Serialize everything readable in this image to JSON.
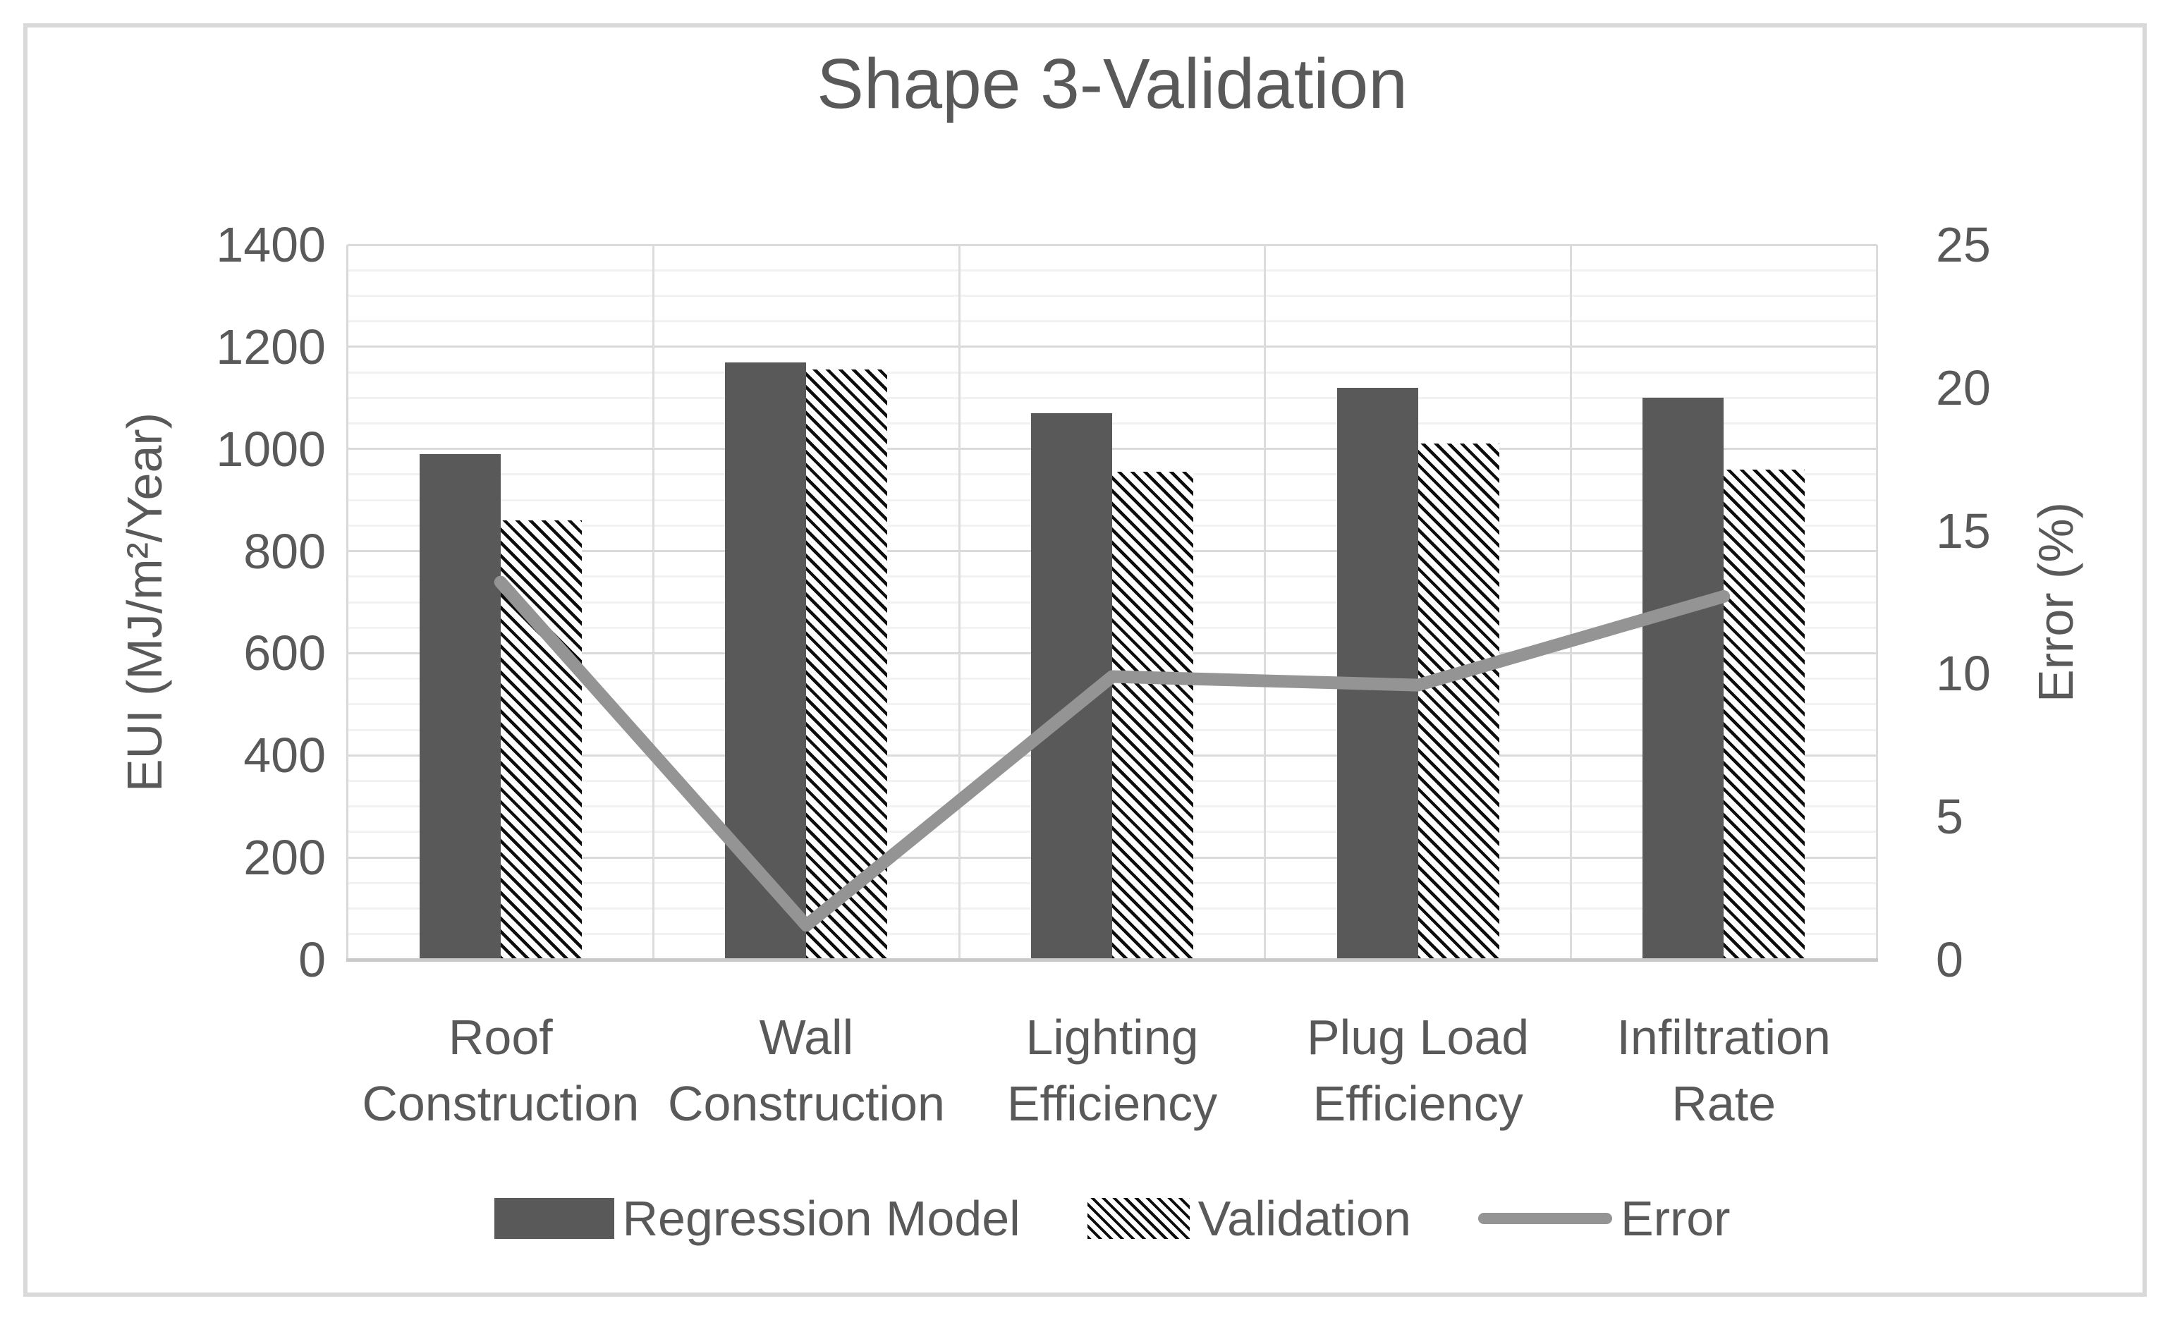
{
  "title": "Shape 3-Validation",
  "colors": {
    "text": "#595959",
    "bar_solid": "#595959",
    "hatch_stroke": "#0c0c0c",
    "error_line": "#949494",
    "grid_major": "#DADADA",
    "grid_minor": "#F2F2F2",
    "grid_vertical": "#DCDCDC",
    "axis_line": "#C9C9C9",
    "frame_border": "#D9D9D9"
  },
  "chart_data": {
    "type": "combo-bar-line",
    "title": "Shape 3-Validation",
    "categories": [
      "Roof Construction",
      "Wall Construction",
      "Lighting Efficiency",
      "Plug Load Efficiency",
      "Infiltration Rate"
    ],
    "category_label_lines": [
      [
        "Roof",
        "Construction"
      ],
      [
        "Wall",
        "Construction"
      ],
      [
        "Lighting",
        "Efficiency"
      ],
      [
        "Plug Load",
        "Efficiency"
      ],
      [
        "Infiltration",
        "Rate"
      ]
    ],
    "series": [
      {
        "name": "Regression Model",
        "type": "bar",
        "style": "solid",
        "axis": "left",
        "values": [
          990,
          1170,
          1070,
          1120,
          1100
        ]
      },
      {
        "name": "Validation",
        "type": "bar",
        "style": "hatched",
        "axis": "left",
        "values": [
          860,
          1155,
          955,
          1010,
          960
        ]
      },
      {
        "name": "Error",
        "type": "line",
        "axis": "right",
        "values": [
          13.2,
          1.2,
          9.9,
          9.6,
          12.7
        ]
      }
    ],
    "left_axis": {
      "label": "EUI (MJ/m²/Year)",
      "min": 0,
      "max": 1400,
      "major_tick": 200,
      "minor_tick": 50,
      "ticks": [
        0,
        200,
        400,
        600,
        800,
        1000,
        1200,
        1400
      ]
    },
    "right_axis": {
      "label": "Error (%)",
      "min": 0,
      "max": 25,
      "major_tick": 5,
      "ticks": [
        0,
        5,
        10,
        15,
        20,
        25
      ]
    },
    "legend": {
      "position": "bottom",
      "entries": [
        "Regression Model",
        "Validation",
        "Error"
      ]
    },
    "grid": {
      "horizontal_major": true,
      "horizontal_minor": true,
      "vertical_category_boundaries": true
    }
  }
}
